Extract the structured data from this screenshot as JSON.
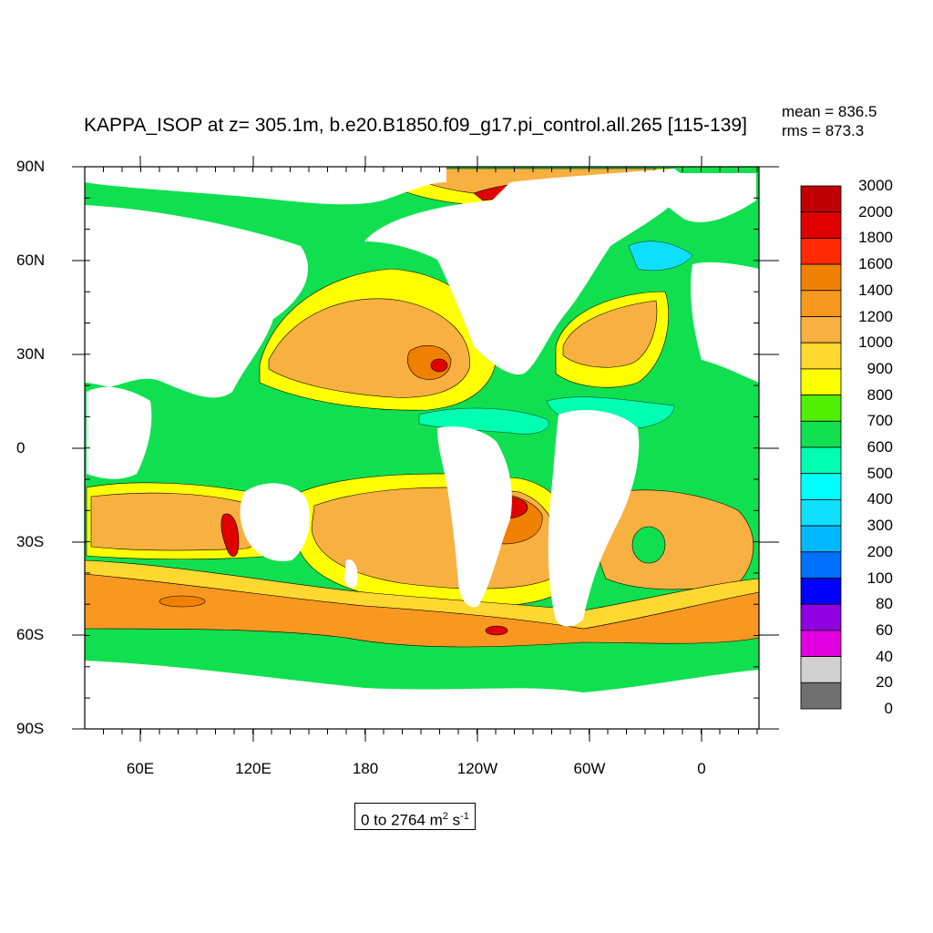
{
  "title": "KAPPA_ISOP at z= 305.1m, b.e20.B1850.f09_g17.pi_control.all.265 [115-139]",
  "stats": {
    "mean": "mean = 836.5",
    "rms": "rms = 873.3"
  },
  "lat_ticks": [
    "90N",
    "60N",
    "30N",
    "0",
    "30S",
    "60S",
    "90S"
  ],
  "lon_ticks": [
    "60E",
    "120E",
    "180",
    "120W",
    "60W",
    "0"
  ],
  "range_text": {
    "prefix": "0 to 2764 m",
    "sup1": "2",
    "mid": " s",
    "sup2": "-1"
  },
  "colorbar": {
    "labels": [
      "3000",
      "2000",
      "1800",
      "1600",
      "1400",
      "1200",
      "1000",
      "900",
      "800",
      "700",
      "600",
      "500",
      "400",
      "300",
      "200",
      "100",
      "80",
      "60",
      "40",
      "20",
      "0"
    ],
    "colors": [
      "#c00000",
      "#e00000",
      "#ff2a00",
      "#f08000",
      "#f89820",
      "#f8b040",
      "#ffd830",
      "#ffff00",
      "#50f000",
      "#10e050",
      "#00ffb0",
      "#00ffff",
      "#10e0ff",
      "#00b8ff",
      "#0070ff",
      "#0000ff",
      "#9000e0",
      "#e000e0",
      "#d0d0d0",
      "#707070"
    ]
  },
  "legend_note": "bins top to bottom: >2000 ... 0-20",
  "map": {
    "colors": {
      "green": "#10e050",
      "lightgreen": "#50f000",
      "yellow": "#ffff00",
      "gold": "#ffd830",
      "orange1": "#f8b040",
      "orange2": "#f89820",
      "orange3": "#f08000",
      "red1": "#ff2a00",
      "red2": "#e00000",
      "darkred": "#c00000",
      "cyan": "#00ffb0",
      "aqua": "#10e0ff"
    }
  }
}
